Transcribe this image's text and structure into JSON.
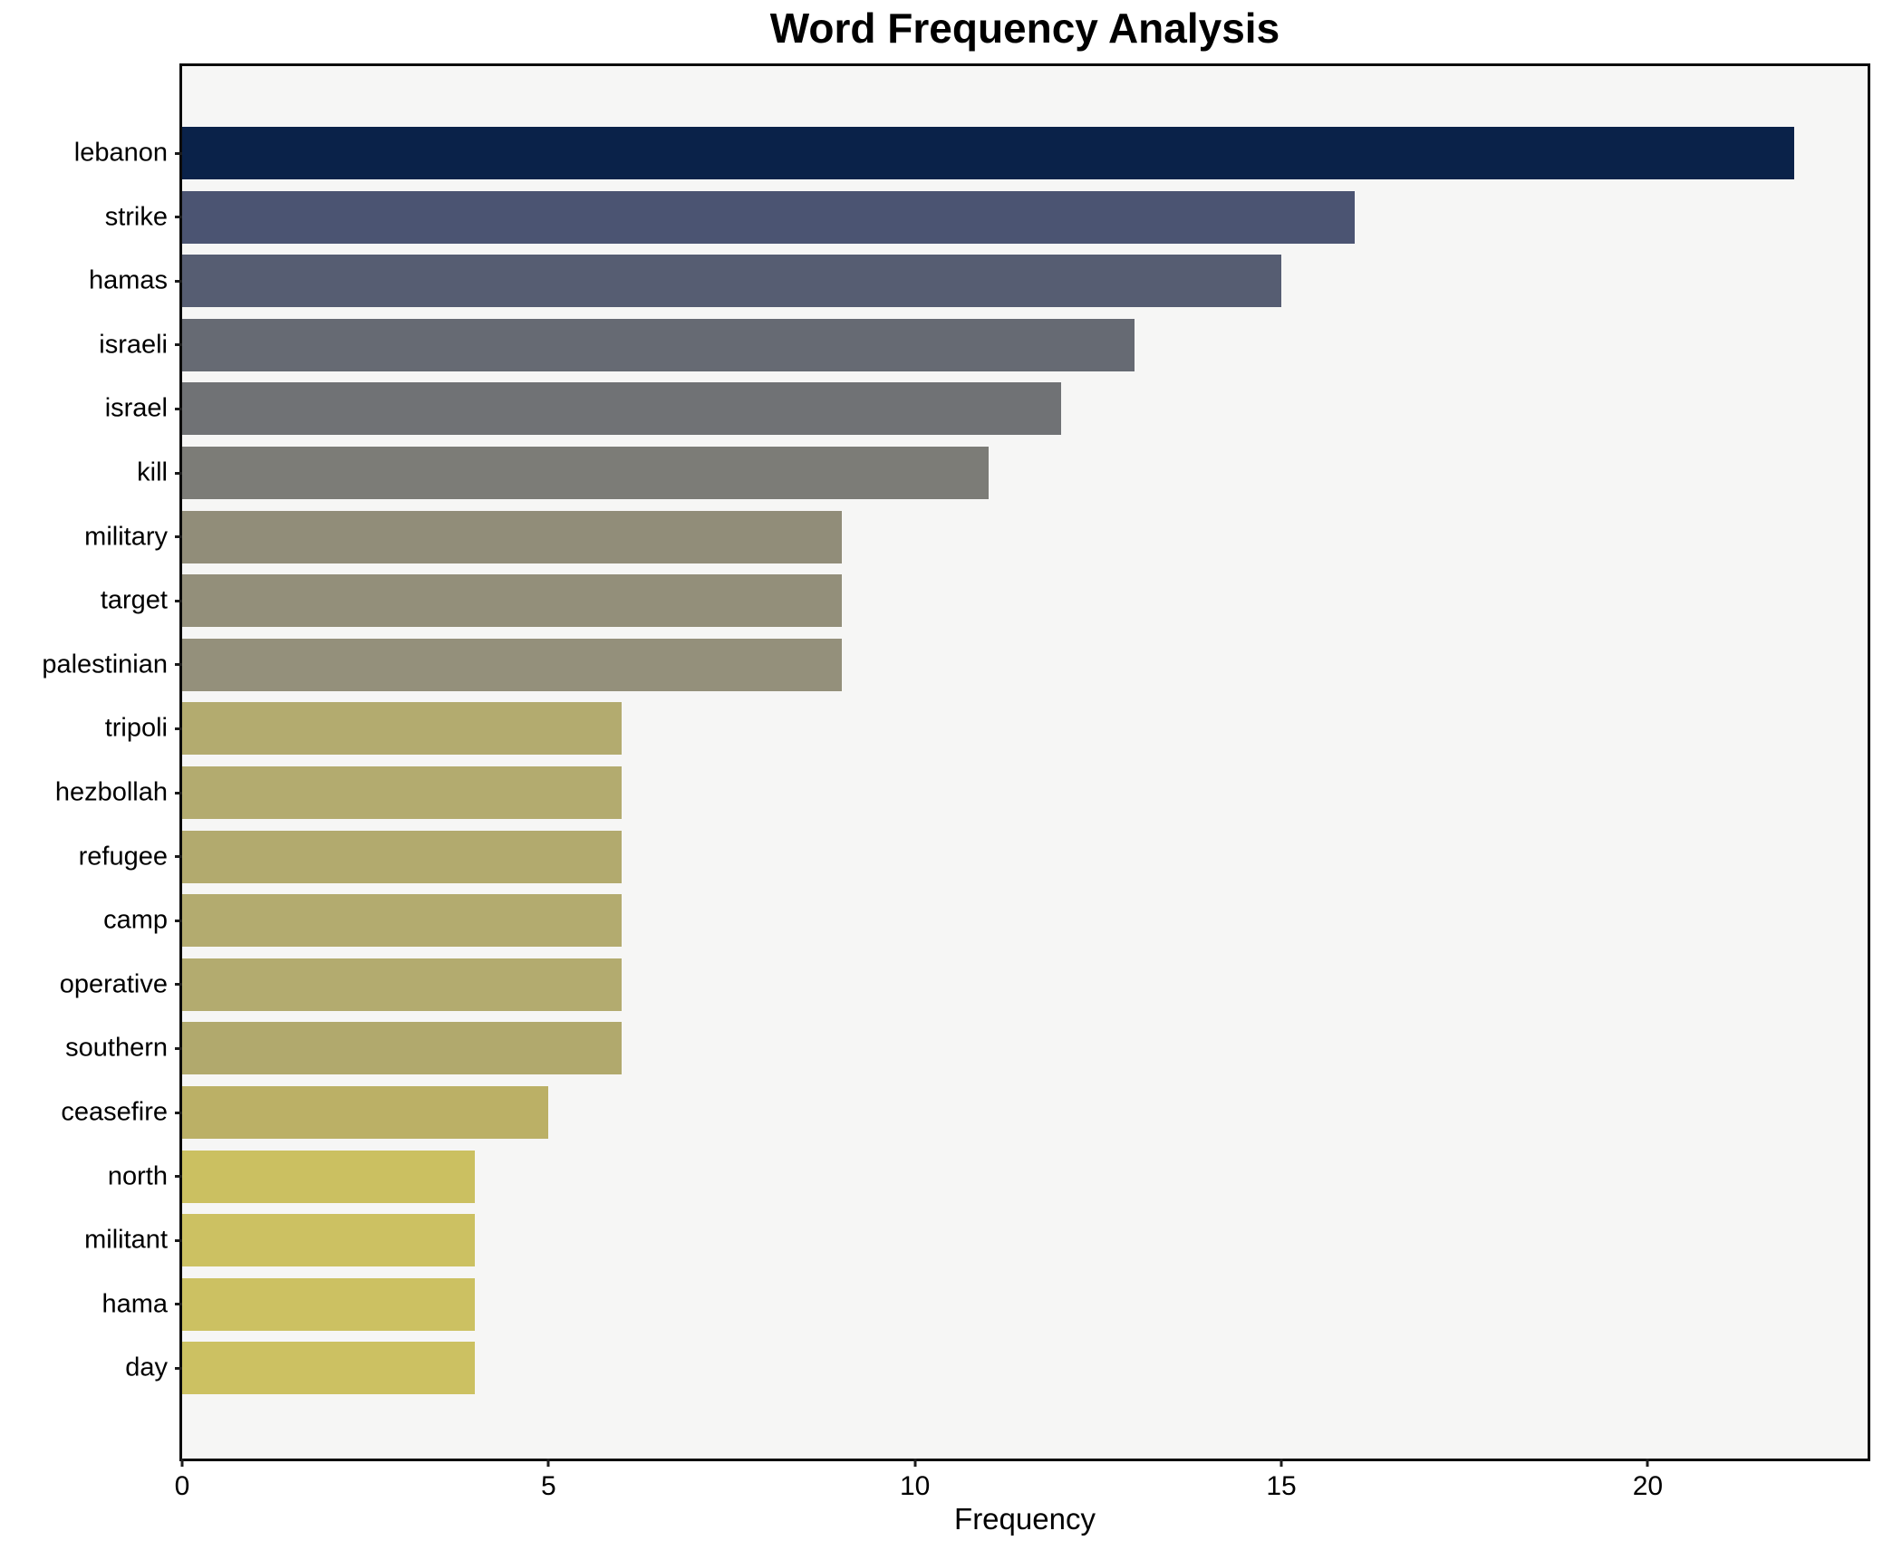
{
  "style": {
    "figure_bg": "#ffffff",
    "plot_bg": "#f6f6f5",
    "spine_color": "#0b0b0b",
    "tick_color": "#1c1c1c",
    "text_color": "#000000"
  },
  "chart_data": {
    "type": "bar",
    "orientation": "horizontal",
    "title": "Word Frequency Analysis",
    "xlabel": "Frequency",
    "ylabel": "",
    "categories": [
      "lebanon",
      "strike",
      "hamas",
      "israeli",
      "israel",
      "kill",
      "military",
      "target",
      "palestinian",
      "tripoli",
      "hezbollah",
      "refugee",
      "camp",
      "operative",
      "southern",
      "ceasefire",
      "north",
      "militant",
      "hama",
      "day"
    ],
    "values": [
      22,
      16,
      15,
      13,
      12,
      11,
      9,
      9,
      9,
      6,
      6,
      6,
      6,
      6,
      6,
      5,
      4,
      4,
      4,
      4
    ],
    "bar_colors": [
      "#0a2249",
      "#4b5472",
      "#565d72",
      "#666a73",
      "#707275",
      "#7c7c77",
      "#918d79",
      "#938f7a",
      "#94907b",
      "#b3ab6f",
      "#b3ab6f",
      "#b2aa6e",
      "#b3ab6f",
      "#b3ab6f",
      "#b1a96d",
      "#bbb066",
      "#cbc061",
      "#ccc162",
      "#ccc162",
      "#ccc162"
    ],
    "xlim": [
      0,
      23
    ],
    "x_ticks": [
      0,
      5,
      10,
      15,
      20
    ],
    "grid": false,
    "legend": null
  }
}
